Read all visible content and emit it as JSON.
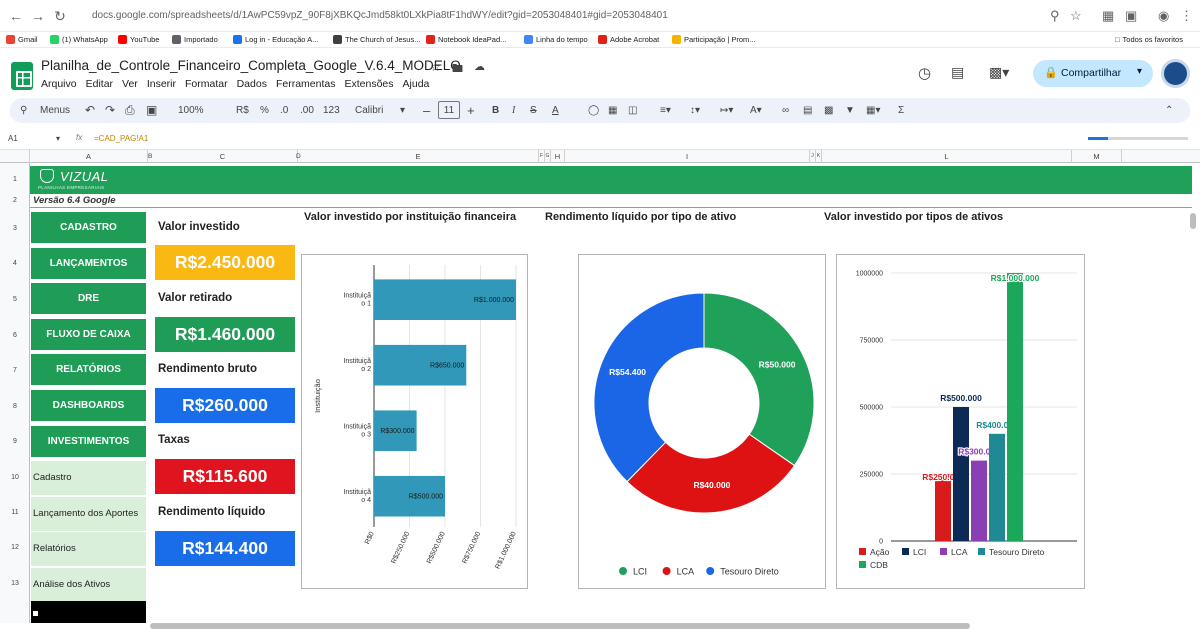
{
  "browser": {
    "url": "docs.google.com/spreadsheets/d/1AwPC59vpZ_90F8jXBKQcJmd58kt0LXkPia8tF1hdWY/edit?gid=2053048401#gid=2053048401",
    "bookmarks": [
      {
        "label": "Gmail",
        "color": "#ea4335"
      },
      {
        "label": "(1) WhatsApp",
        "color": "#25d366"
      },
      {
        "label": "YouTube",
        "color": "#ff0000"
      },
      {
        "label": "Importado",
        "color": "#5f6368"
      },
      {
        "label": "Log in - Educação A...",
        "color": "#1a73e8"
      },
      {
        "label": "The Church of Jesus...",
        "color": "#3c4043"
      },
      {
        "label": "Notebook IdeaPad...",
        "color": "#e2231a"
      },
      {
        "label": "Linha do tempo",
        "color": "#4285f4"
      },
      {
        "label": "Adobe Acrobat",
        "color": "#e41f13"
      },
      {
        "label": "Participação | Prom...",
        "color": "#f4b400"
      }
    ],
    "all_bookmarks": "Todos os favoritos"
  },
  "sheet": {
    "title": "Planilha_de_Controle_Financeiro_Completa_Google_V.6.4_MODELO",
    "menu": [
      "Arquivo",
      "Editar",
      "Ver",
      "Inserir",
      "Formatar",
      "Dados",
      "Ferramentas",
      "Extensões",
      "Ajuda"
    ],
    "share_label": "Compartilhar",
    "toolbar": {
      "menus": "Menus",
      "zoom": "100%",
      "currency": "R$",
      "percent": "%",
      "dec_less": ".0",
      "dec_more": ".00",
      "num123": "123",
      "font": "Calibri",
      "font_size": "11"
    },
    "cell_ref": "A1",
    "formula": "=CAD_PAG!A1",
    "columns": [
      "A",
      "B",
      "C",
      "D",
      "E",
      "F",
      "G",
      "H",
      "I",
      "J",
      "K",
      "L",
      "M"
    ],
    "rows": [
      "1",
      "2",
      "3",
      "4",
      "5",
      "6",
      "7",
      "8",
      "9",
      "10",
      "11",
      "12",
      "13"
    ]
  },
  "dashboard": {
    "logo": "VIZUAL",
    "logo_sub": "PLANILHAS EMPRESARIAIS",
    "version": "Versão 6.4 Google",
    "nav_primary": [
      "CADASTRO",
      "LANÇAMENTOS",
      "DRE",
      "FLUXO DE CAIXA",
      "RELATÓRIOS",
      "DASHBOARDS",
      "INVESTIMENTOS"
    ],
    "nav_secondary": [
      "Cadastro",
      "Lançamento dos Aportes",
      "Relatórios",
      "Análise dos Ativos"
    ],
    "kpis": [
      {
        "label": "Valor investido",
        "value": "R$2.450.000",
        "color": "#f9b812"
      },
      {
        "label": "Valor retirado",
        "value": "R$1.460.000",
        "color": "#1f9c55"
      },
      {
        "label": "Rendimento bruto",
        "value": "R$260.000",
        "color": "#1a6de8"
      },
      {
        "label": "Taxas",
        "value": "R$115.600",
        "color": "#e0141e"
      },
      {
        "label": "Rendimento líquido",
        "value": "R$144.400",
        "color": "#1a6de8"
      }
    ]
  },
  "chart_data": [
    {
      "type": "bar",
      "orientation": "horizontal",
      "title": "Valor investido por instituição financeira",
      "ylabel": "Instituição",
      "categories": [
        "Instituição 1",
        "Instituição 2",
        "Instituição 3",
        "Instituição 4"
      ],
      "values": [
        1000000,
        650000,
        300000,
        500000
      ],
      "data_labels": [
        "R$1.000.000",
        "R$650.000",
        "R$300.000",
        "R$500.000"
      ],
      "ticks": [
        "R$0",
        "R$250.000",
        "R$500.000",
        "R$750.000",
        "R$1.000.000"
      ],
      "xlim": [
        0,
        1000000
      ],
      "color": "#3198ba",
      "grid": true
    },
    {
      "type": "pie",
      "donut": true,
      "title": "Rendimento líquido por tipo de ativo",
      "slices": [
        {
          "label": "LCI",
          "value": 50000,
          "data_label": "R$50.000",
          "color": "#1fa15a"
        },
        {
          "label": "LCA",
          "value": 40000,
          "data_label": "R$40.000",
          "color": "#de1212"
        },
        {
          "label": "Tesouro Direto",
          "value": 54400,
          "data_label": "R$54.400",
          "color": "#1a66e6"
        }
      ],
      "legend": "bottom"
    },
    {
      "type": "bar",
      "title": "Valor investido por tipos de ativos",
      "series": [
        {
          "name": "Ação",
          "value": 250000,
          "data_label": "R$250.000",
          "color": "#d81b1b"
        },
        {
          "name": "LCI",
          "value": 500000,
          "data_label": "R$500.000",
          "color": "#0d2a57"
        },
        {
          "name": "LCA",
          "value": 300000,
          "data_label": "R$300.000",
          "color": "#8a3fb5"
        },
        {
          "name": "Tesouro Direto",
          "value": 400000,
          "data_label": "R$400.000",
          "color": "#1f8a93"
        },
        {
          "name": "CDB",
          "value": 1000000,
          "data_label": "R$1.000.000",
          "color": "#1ca85a"
        }
      ],
      "ticks": [
        "0",
        "250000",
        "500000",
        "750000",
        "1000000"
      ],
      "ylim": [
        0,
        1000000
      ],
      "legend": "bottom",
      "grid": true
    }
  ]
}
